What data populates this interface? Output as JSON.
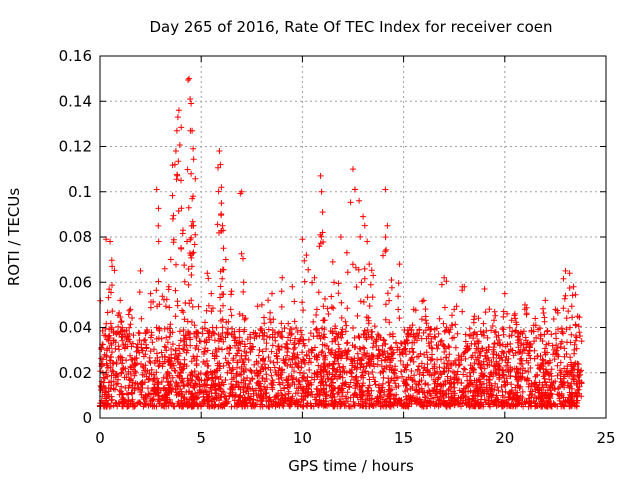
{
  "chart_data": {
    "type": "scatter",
    "title": "Day 265 of 2016, Rate Of TEC Index for receiver coen",
    "xlabel": "GPS time / hours",
    "ylabel": "ROTI / TECUs",
    "xlim": [
      0,
      25
    ],
    "ylim": [
      0,
      0.16
    ],
    "xticks": [
      0,
      5,
      10,
      15,
      20,
      25
    ],
    "xtick_labels": [
      "0",
      "5",
      "10",
      "15",
      "20",
      "25"
    ],
    "yticks": [
      0,
      0.02,
      0.04,
      0.06,
      0.08,
      0.1,
      0.12,
      0.14,
      0.16
    ],
    "ytick_labels": [
      "0",
      "0.02",
      "0.04",
      "0.06",
      "0.08",
      "0.1",
      "0.12",
      "0.14",
      "0.16"
    ],
    "grid": true,
    "marker": "+",
    "series": [
      {
        "name": "ROTI",
        "color": "#ff0000",
        "data_range_hours": [
          0,
          23.8
        ],
        "baseline_band": [
          0.005,
          0.04
        ],
        "spikes": [
          {
            "x": 0.3,
            "y": 0.079
          },
          {
            "x": 0.5,
            "y": 0.078
          },
          {
            "x": 0.6,
            "y": 0.067
          },
          {
            "x": 1.0,
            "y": 0.052
          },
          {
            "x": 1.5,
            "y": 0.048
          },
          {
            "x": 2.0,
            "y": 0.065
          },
          {
            "x": 2.5,
            "y": 0.055
          },
          {
            "x": 2.8,
            "y": 0.101
          },
          {
            "x": 2.9,
            "y": 0.078
          },
          {
            "x": 3.2,
            "y": 0.066
          },
          {
            "x": 3.4,
            "y": 0.058
          },
          {
            "x": 3.6,
            "y": 0.088
          },
          {
            "x": 3.7,
            "y": 0.112
          },
          {
            "x": 3.75,
            "y": 0.118
          },
          {
            "x": 3.8,
            "y": 0.127
          },
          {
            "x": 3.85,
            "y": 0.133
          },
          {
            "x": 3.9,
            "y": 0.136
          },
          {
            "x": 4.0,
            "y": 0.105
          },
          {
            "x": 4.1,
            "y": 0.083
          },
          {
            "x": 4.3,
            "y": 0.078
          },
          {
            "x": 4.4,
            "y": 0.15
          },
          {
            "x": 4.45,
            "y": 0.141
          },
          {
            "x": 4.5,
            "y": 0.139
          },
          {
            "x": 4.55,
            "y": 0.127
          },
          {
            "x": 4.6,
            "y": 0.119
          },
          {
            "x": 4.5,
            "y": 0.108
          },
          {
            "x": 4.6,
            "y": 0.098
          },
          {
            "x": 4.6,
            "y": 0.085
          },
          {
            "x": 5.3,
            "y": 0.064
          },
          {
            "x": 5.5,
            "y": 0.055
          },
          {
            "x": 5.9,
            "y": 0.118
          },
          {
            "x": 5.95,
            "y": 0.112
          },
          {
            "x": 6.0,
            "y": 0.102
          },
          {
            "x": 6.0,
            "y": 0.095
          },
          {
            "x": 6.05,
            "y": 0.085
          },
          {
            "x": 6.1,
            "y": 0.075
          },
          {
            "x": 6.5,
            "y": 0.056
          },
          {
            "x": 7.0,
            "y": 0.1
          },
          {
            "x": 7.1,
            "y": 0.06
          },
          {
            "x": 8.0,
            "y": 0.05
          },
          {
            "x": 8.5,
            "y": 0.055
          },
          {
            "x": 9.0,
            "y": 0.062
          },
          {
            "x": 9.5,
            "y": 0.058
          },
          {
            "x": 10.0,
            "y": 0.079
          },
          {
            "x": 10.2,
            "y": 0.072
          },
          {
            "x": 10.6,
            "y": 0.062
          },
          {
            "x": 10.9,
            "y": 0.107
          },
          {
            "x": 10.95,
            "y": 0.1
          },
          {
            "x": 11.0,
            "y": 0.091
          },
          {
            "x": 11.0,
            "y": 0.082
          },
          {
            "x": 11.5,
            "y": 0.069
          },
          {
            "x": 11.9,
            "y": 0.08
          },
          {
            "x": 12.2,
            "y": 0.073
          },
          {
            "x": 12.5,
            "y": 0.11
          },
          {
            "x": 12.6,
            "y": 0.101
          },
          {
            "x": 12.8,
            "y": 0.096
          },
          {
            "x": 13.0,
            "y": 0.089
          },
          {
            "x": 13.2,
            "y": 0.078
          },
          {
            "x": 13.3,
            "y": 0.068
          },
          {
            "x": 13.5,
            "y": 0.063
          },
          {
            "x": 14.1,
            "y": 0.101
          },
          {
            "x": 14.2,
            "y": 0.085
          },
          {
            "x": 14.4,
            "y": 0.061
          },
          {
            "x": 14.8,
            "y": 0.068
          },
          {
            "x": 15.5,
            "y": 0.048
          },
          {
            "x": 16.0,
            "y": 0.052
          },
          {
            "x": 17.0,
            "y": 0.062
          },
          {
            "x": 17.5,
            "y": 0.048
          },
          {
            "x": 18.0,
            "y": 0.058
          },
          {
            "x": 18.5,
            "y": 0.045
          },
          {
            "x": 19.0,
            "y": 0.057
          },
          {
            "x": 19.5,
            "y": 0.047
          },
          {
            "x": 20.0,
            "y": 0.055
          },
          {
            "x": 20.5,
            "y": 0.046
          },
          {
            "x": 21.0,
            "y": 0.05
          },
          {
            "x": 21.5,
            "y": 0.044
          },
          {
            "x": 22.0,
            "y": 0.052
          },
          {
            "x": 22.5,
            "y": 0.048
          },
          {
            "x": 23.0,
            "y": 0.065
          },
          {
            "x": 23.2,
            "y": 0.064
          },
          {
            "x": 23.4,
            "y": 0.058
          },
          {
            "x": 23.6,
            "y": 0.045
          }
        ]
      }
    ]
  }
}
